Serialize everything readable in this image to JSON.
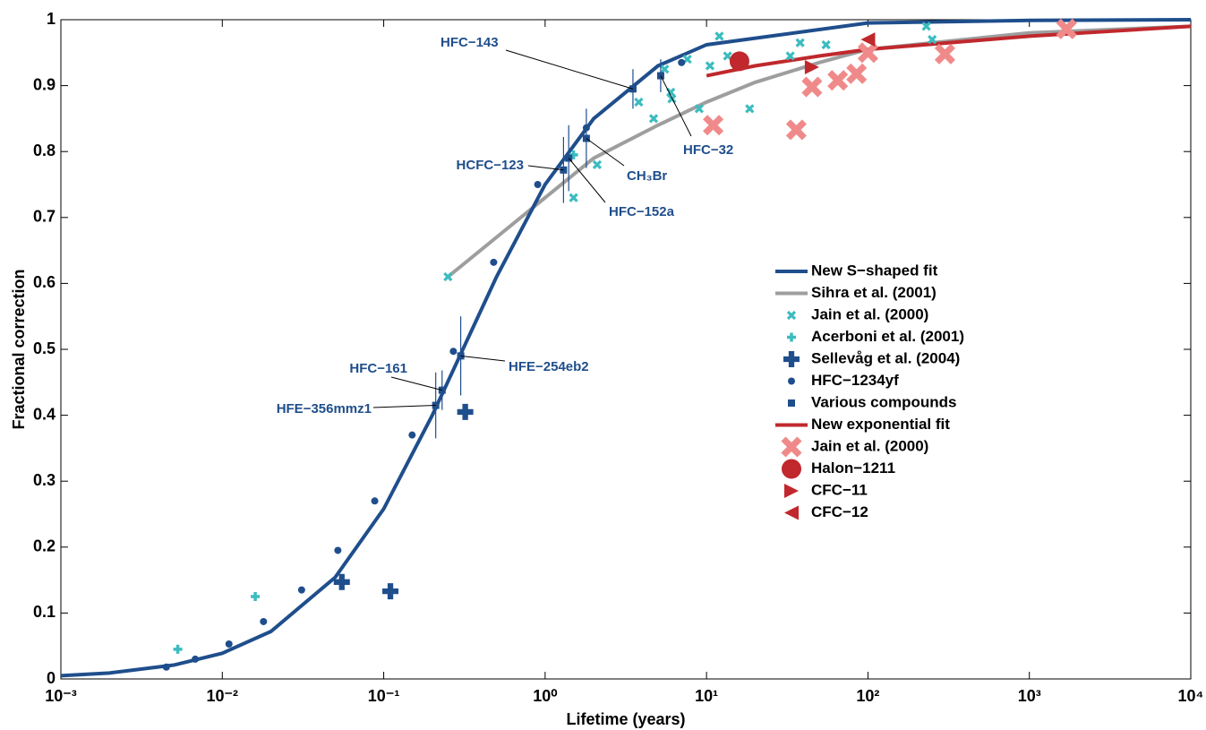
{
  "chart_data": {
    "type": "line",
    "x_label": "Lifetime (years)",
    "y_label": "Fractional correction",
    "xscale": "log",
    "xlim": [
      0.001,
      10000
    ],
    "ylim": [
      0,
      1
    ],
    "xticks": [
      {
        "value": 0.001,
        "label": "10⁻³"
      },
      {
        "value": 0.01,
        "label": "10⁻²"
      },
      {
        "value": 0.1,
        "label": "10⁻¹"
      },
      {
        "value": 1,
        "label": "10⁰"
      },
      {
        "value": 10,
        "label": "10¹"
      },
      {
        "value": 100,
        "label": "10²"
      },
      {
        "value": 1000,
        "label": "10³"
      },
      {
        "value": 10000,
        "label": "10⁴"
      }
    ],
    "yticks": [
      0,
      0.1,
      0.2,
      0.3,
      0.4,
      0.5,
      0.6,
      0.7,
      0.8,
      0.9,
      1
    ],
    "series": [
      {
        "name": "New S−shaped fit",
        "style": "line",
        "color": "#1f4e8c",
        "width": 4,
        "x": [
          0.001,
          0.002,
          0.005,
          0.01,
          0.02,
          0.05,
          0.1,
          0.2,
          0.5,
          1,
          2,
          5,
          10,
          100,
          1000,
          10000
        ],
        "values": [
          0.005,
          0.009,
          0.021,
          0.039,
          0.072,
          0.154,
          0.258,
          0.4,
          0.61,
          0.75,
          0.85,
          0.93,
          0.962,
          0.995,
          0.999,
          1.0
        ]
      },
      {
        "name": "Sihra et al. (2001)",
        "style": "line",
        "color": "#9e9e9e",
        "width": 4,
        "x": [
          0.25,
          0.5,
          1,
          2,
          5,
          10,
          20,
          50,
          100,
          1000,
          10000
        ],
        "values": [
          0.61,
          0.67,
          0.73,
          0.79,
          0.84,
          0.875,
          0.905,
          0.935,
          0.955,
          0.98,
          0.99
        ]
      },
      {
        "name": "Jain et al. (2000)",
        "style": "marker",
        "marker": "x",
        "size": 4,
        "color": "#3bbcc0",
        "x": [
          0.25,
          1.5,
          2.1,
          3.8,
          4.7,
          5.5,
          6,
          6.1,
          7.6,
          9,
          10.5,
          12,
          13.5,
          18.5,
          33,
          38,
          55,
          230,
          250
        ],
        "values": [
          0.61,
          0.73,
          0.78,
          0.875,
          0.85,
          0.925,
          0.89,
          0.88,
          0.94,
          0.865,
          0.93,
          0.975,
          0.945,
          0.865,
          0.945,
          0.965,
          0.962,
          0.99,
          0.97
        ]
      },
      {
        "name": "Acerboni et al. (2001)",
        "style": "marker",
        "marker": "plus",
        "size": 5,
        "color": "#3bbcc0",
        "x": [
          0.0053,
          0.016,
          1.5
        ],
        "values": [
          0.045,
          0.125,
          0.795
        ]
      },
      {
        "name": "Sellevåg et al. (2004)",
        "style": "marker",
        "marker": "plus",
        "size": 9,
        "color": "#1f4e8c",
        "x": [
          0.055,
          0.11,
          0.32
        ],
        "values": [
          0.147,
          0.133,
          0.405
        ]
      },
      {
        "name": "HFC−1234yf",
        "style": "marker",
        "marker": "circle",
        "size": 4,
        "color": "#1f4e8c",
        "x": [
          0.0045,
          0.0068,
          0.011,
          0.018,
          0.031,
          0.052,
          0.088,
          0.15,
          0.27,
          0.48,
          0.9,
          1.8,
          7
        ],
        "values": [
          0.018,
          0.03,
          0.053,
          0.087,
          0.135,
          0.195,
          0.27,
          0.37,
          0.497,
          0.632,
          0.75,
          0.836,
          0.935
        ]
      },
      {
        "name": "Various compounds",
        "style": "marker",
        "marker": "square",
        "size": 4,
        "color": "#1f4e8c",
        "x": [
          0.21,
          0.23,
          0.3,
          1.3,
          1.4,
          1.8,
          3.5,
          5.2
        ],
        "values": [
          0.415,
          0.438,
          0.49,
          0.772,
          0.79,
          0.82,
          0.895,
          0.915
        ],
        "errors": [
          0.05,
          0.03,
          0.06,
          0.05,
          0.05,
          0.045,
          0.03,
          0.025
        ],
        "labels": [
          "HFE−356mmz1",
          "HFC−161",
          "HFE−254eb2",
          "HCFC−123",
          "HFC−152a",
          "CH₃Br",
          "HFC−143",
          "HFC−32"
        ]
      },
      {
        "name": "New exponential fit",
        "style": "line",
        "color": "#c0282d",
        "width": 4,
        "x": [
          10,
          20,
          50,
          100,
          1000,
          10000
        ],
        "values": [
          0.915,
          0.93,
          0.945,
          0.955,
          0.975,
          0.99
        ]
      },
      {
        "name": "Jain et al. (2000)",
        "style": "marker",
        "marker": "x",
        "size": 9,
        "color": "#f08a8a",
        "x": [
          11,
          36,
          45,
          65,
          85,
          100,
          300,
          1700
        ],
        "values": [
          0.84,
          0.833,
          0.898,
          0.908,
          0.918,
          0.95,
          0.948,
          0.986
        ]
      },
      {
        "name": "Halon−1211",
        "style": "marker",
        "marker": "circle",
        "size": 11,
        "color": "#c0282d",
        "x": [
          16
        ],
        "values": [
          0.937
        ]
      },
      {
        "name": "CFC−11",
        "style": "marker",
        "marker": "triangle-right",
        "size": 8,
        "color": "#c0282d",
        "x": [
          45
        ],
        "values": [
          0.928
        ]
      },
      {
        "name": "CFC−12",
        "style": "marker",
        "marker": "triangle-left",
        "size": 8,
        "color": "#c0282d",
        "x": [
          100
        ],
        "values": [
          0.97
        ]
      }
    ]
  }
}
